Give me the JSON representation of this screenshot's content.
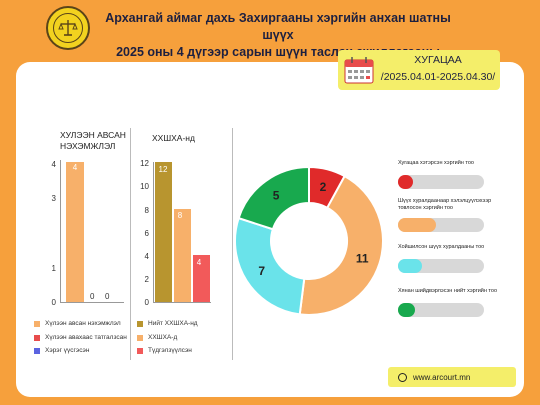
{
  "header": {
    "title_line1": "Архангай аймаг дахь Захиргааны хэргийн анхан шатны шүүх",
    "title_line2": "2025 оны 4 дүгээр сарын шүүн таслах ажиллагааны мэдээ"
  },
  "period": {
    "label": "ХУГАЦАА",
    "dates": "/2025.04.01-2025.04.30/"
  },
  "chart_data": [
    {
      "type": "bar",
      "title": "ХУЛЭЭН АВСАН НЭХЭМЖЛЭЛ",
      "yticks": [
        "0",
        "1",
        "3",
        "4"
      ],
      "ylim": [
        0,
        4
      ],
      "series": [
        {
          "name": "Хүлээн авсан нэхэмжлэл",
          "value": 4,
          "color": "#f7b06a"
        },
        {
          "name": "Хүлээн авахаас татгалзсан",
          "value": 0,
          "color": "#e84c4c"
        },
        {
          "name": "Хэрэг үүсгэсэн",
          "value": 0,
          "color": "#5b63e0"
        }
      ],
      "value_labels": [
        "4",
        "0",
        "0"
      ]
    },
    {
      "type": "bar",
      "title": "ХХШХА-нд",
      "yticks": [
        "0",
        "2",
        "4",
        "6",
        "8",
        "10",
        "12"
      ],
      "ylim": [
        0,
        12
      ],
      "series": [
        {
          "name": "Нийт ХХШХА-нд",
          "value": 12,
          "color": "#b8952f"
        },
        {
          "name": "ХХШХА-д",
          "value": 8,
          "color": "#f7b06a"
        },
        {
          "name": "Түдгэлзүүлсэн",
          "value": 4,
          "color": "#f25a5a"
        }
      ],
      "value_labels": [
        "12",
        "8",
        "4"
      ]
    },
    {
      "type": "pie",
      "slices": [
        {
          "value": 2,
          "label": "2",
          "color": "#e02a2a"
        },
        {
          "value": 11,
          "label": "11",
          "color": "#f7b06a"
        },
        {
          "value": 7,
          "label": "7",
          "color": "#6ae3ea"
        },
        {
          "value": 5,
          "label": "5",
          "color": "#18a94e"
        }
      ]
    }
  ],
  "progress": [
    {
      "label": "Хугацаа хэтэрсэн хэргийн тоо",
      "value": 2,
      "color": "#e02a2a"
    },
    {
      "label": "Шүүх хуралдаанаар хэлэлцүүлэхээр товлосон хэргийн тоо",
      "value": 11,
      "color": "#f7b06a"
    },
    {
      "label": "Хойшилсон шүүх хуралдааны тоо",
      "value": 7,
      "color": "#6ae3ea"
    },
    {
      "label": "Хянан шийдвэрлэсэн нийт хэргийн тоо",
      "value": 5,
      "color": "#18a94e"
    }
  ],
  "progress_max": 25,
  "footer": {
    "website": "www.arcourt.mn"
  },
  "icons": {
    "logo": "court-emblem-icon",
    "calendar": "calendar-icon",
    "globe": "globe-icon"
  }
}
